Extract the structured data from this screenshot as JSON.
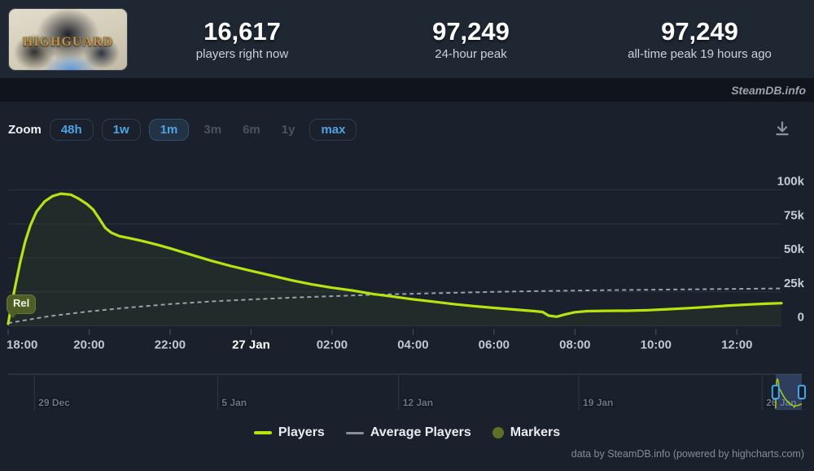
{
  "header": {
    "game_title": "HIGHGUARD",
    "stats": [
      {
        "value": "16,617",
        "label": "players right now"
      },
      {
        "value": "97,249",
        "label": "24-hour peak"
      },
      {
        "value": "97,249",
        "label": "all-time peak 19 hours ago"
      }
    ]
  },
  "brand_bar": {
    "text": "SteamDB.info"
  },
  "toolbar": {
    "zoom_label": "Zoom",
    "buttons": [
      {
        "label": "48h",
        "state": "enabled"
      },
      {
        "label": "1w",
        "state": "enabled"
      },
      {
        "label": "1m",
        "state": "selected"
      },
      {
        "label": "3m",
        "state": "disabled"
      },
      {
        "label": "6m",
        "state": "disabled"
      },
      {
        "label": "1y",
        "state": "disabled"
      },
      {
        "label": "max",
        "state": "enabled"
      }
    ],
    "download_icon": "download-chart-icon"
  },
  "chart_data": {
    "type": "line",
    "x_axis": {
      "total_hours": 19.1,
      "ticks": [
        {
          "label": "18:00",
          "hour": 0
        },
        {
          "label": "20:00",
          "hour": 2
        },
        {
          "label": "22:00",
          "hour": 4
        },
        {
          "label": "27 Jan",
          "hour": 6,
          "emphasis": true
        },
        {
          "label": "02:00",
          "hour": 8
        },
        {
          "label": "04:00",
          "hour": 10
        },
        {
          "label": "06:00",
          "hour": 12
        },
        {
          "label": "08:00",
          "hour": 14
        },
        {
          "label": "10:00",
          "hour": 16
        },
        {
          "label": "12:00",
          "hour": 18
        }
      ]
    },
    "y_axis": {
      "min": 0,
      "grid": true,
      "ticks": [
        {
          "label": "0",
          "value": 0
        },
        {
          "label": "25k",
          "value": 25000
        },
        {
          "label": "50k",
          "value": 50000
        },
        {
          "label": "75k",
          "value": 75000
        },
        {
          "label": "100k",
          "value": 100000
        }
      ]
    },
    "series": [
      {
        "name": "Players",
        "color": "#b6e50e",
        "dash": "solid",
        "points": [
          [
            0,
            1500
          ],
          [
            0.08,
            15000
          ],
          [
            0.18,
            30000
          ],
          [
            0.3,
            47000
          ],
          [
            0.42,
            62000
          ],
          [
            0.55,
            74000
          ],
          [
            0.7,
            84000
          ],
          [
            0.9,
            91500
          ],
          [
            1.1,
            95500
          ],
          [
            1.3,
            97249
          ],
          [
            1.55,
            96500
          ],
          [
            1.75,
            93500
          ],
          [
            1.95,
            89500
          ],
          [
            2.1,
            85500
          ],
          [
            2.25,
            79000
          ],
          [
            2.4,
            72000
          ],
          [
            2.55,
            68500
          ],
          [
            2.75,
            66000
          ],
          [
            3.0,
            64500
          ],
          [
            3.3,
            62500
          ],
          [
            3.7,
            59500
          ],
          [
            4.0,
            57000
          ],
          [
            4.5,
            52500
          ],
          [
            5.0,
            48000
          ],
          [
            5.5,
            44000
          ],
          [
            6.0,
            40500
          ],
          [
            6.5,
            37000
          ],
          [
            7.0,
            33500
          ],
          [
            7.5,
            30500
          ],
          [
            8.0,
            28000
          ],
          [
            8.5,
            26000
          ],
          [
            9.0,
            23500
          ],
          [
            9.5,
            21500
          ],
          [
            10.0,
            19500
          ],
          [
            10.5,
            17800
          ],
          [
            11.0,
            16000
          ],
          [
            11.5,
            14500
          ],
          [
            12.0,
            13200
          ],
          [
            12.5,
            12000
          ],
          [
            13.0,
            10800
          ],
          [
            13.2,
            10200
          ],
          [
            13.35,
            7500
          ],
          [
            13.55,
            6700
          ],
          [
            13.75,
            8300
          ],
          [
            14.0,
            10000
          ],
          [
            14.3,
            10800
          ],
          [
            14.8,
            11000
          ],
          [
            15.3,
            11100
          ],
          [
            15.8,
            11500
          ],
          [
            16.3,
            12200
          ],
          [
            16.8,
            13000
          ],
          [
            17.3,
            13900
          ],
          [
            17.8,
            14900
          ],
          [
            18.3,
            15700
          ],
          [
            18.7,
            16200
          ],
          [
            19.1,
            16617
          ]
        ]
      },
      {
        "name": "Average Players",
        "color": "#99a1aa",
        "dash": "dashed",
        "points": [
          [
            0,
            2000
          ],
          [
            1,
            7000
          ],
          [
            2,
            10600
          ],
          [
            3,
            13500
          ],
          [
            4,
            16000
          ],
          [
            5,
            17900
          ],
          [
            6,
            19400
          ],
          [
            7,
            20700
          ],
          [
            8,
            21800
          ],
          [
            9,
            22800
          ],
          [
            10,
            23600
          ],
          [
            11,
            24300
          ],
          [
            12,
            25000
          ],
          [
            13,
            25500
          ],
          [
            14,
            25900
          ],
          [
            15,
            26300
          ],
          [
            16,
            26600
          ],
          [
            17,
            26900
          ],
          [
            18,
            27200
          ],
          [
            19.1,
            27500
          ]
        ]
      }
    ],
    "markers": [
      {
        "label": "Rel",
        "hour": 0,
        "value": 0,
        "color": "#4e5e26"
      }
    ],
    "navigator": {
      "ticks": [
        {
          "label": "29 Dec",
          "pos": 0.033
        },
        {
          "label": "5 Jan",
          "pos": 0.264
        },
        {
          "label": "12 Jan",
          "pos": 0.492
        },
        {
          "label": "19 Jan",
          "pos": 0.719
        },
        {
          "label": "26 Jan",
          "pos": 0.95
        }
      ],
      "selection": {
        "from": 0.967,
        "to": 1.0
      }
    }
  },
  "legend": [
    {
      "label": "Players",
      "swatch": "line",
      "color": "#b6e50e"
    },
    {
      "label": "Average Players",
      "swatch": "line",
      "color": "#878e96"
    },
    {
      "label": "Markers",
      "swatch": "circle",
      "color": "#5f7026"
    }
  ],
  "credits": "data by SteamDB.info (powered by highcharts.com)"
}
